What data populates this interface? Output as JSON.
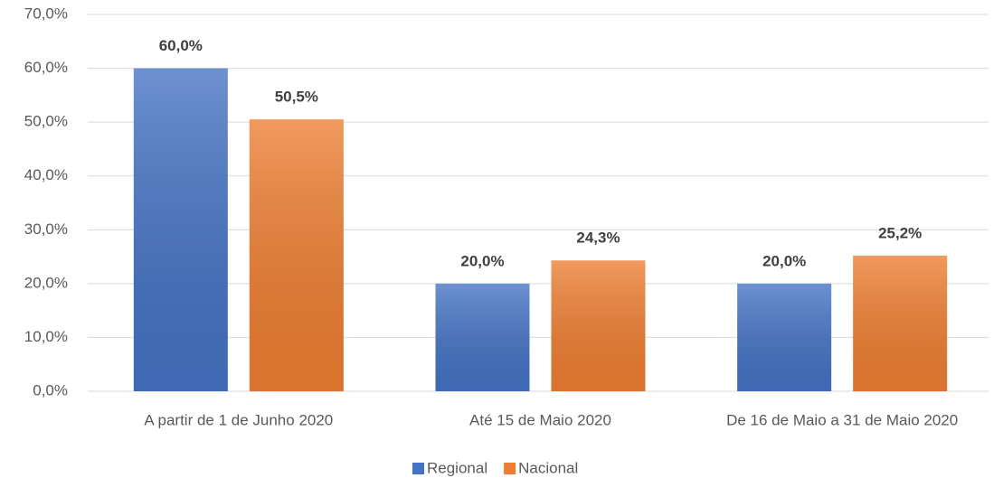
{
  "chart_data": {
    "type": "bar",
    "categories": [
      "A partir de 1 de Junho 2020",
      "Até 15 de Maio 2020",
      "De 16 de Maio a 31 de Maio 2020"
    ],
    "series": [
      {
        "name": "Regional",
        "color": "#4472c4",
        "values": [
          60.0,
          20.0,
          20.0
        ],
        "value_labels": [
          "60,0%",
          "20,0%",
          "20,0%"
        ]
      },
      {
        "name": "Nacional",
        "color": "#ed7d31",
        "values": [
          50.5,
          24.3,
          25.2
        ],
        "value_labels": [
          "50,5%",
          "24,3%",
          "25,2%"
        ]
      }
    ],
    "ylim": [
      0,
      70
    ],
    "yticks": [
      {
        "value": 0,
        "label": "0,0%"
      },
      {
        "value": 10,
        "label": "10,0%"
      },
      {
        "value": 20,
        "label": "20,0%"
      },
      {
        "value": 30,
        "label": "30,0%"
      },
      {
        "value": 40,
        "label": "40,0%"
      },
      {
        "value": 50,
        "label": "50,0%"
      },
      {
        "value": 60,
        "label": "60,0%"
      },
      {
        "value": 70,
        "label": "70,0%"
      }
    ],
    "grid": true,
    "legend": "bottom"
  }
}
